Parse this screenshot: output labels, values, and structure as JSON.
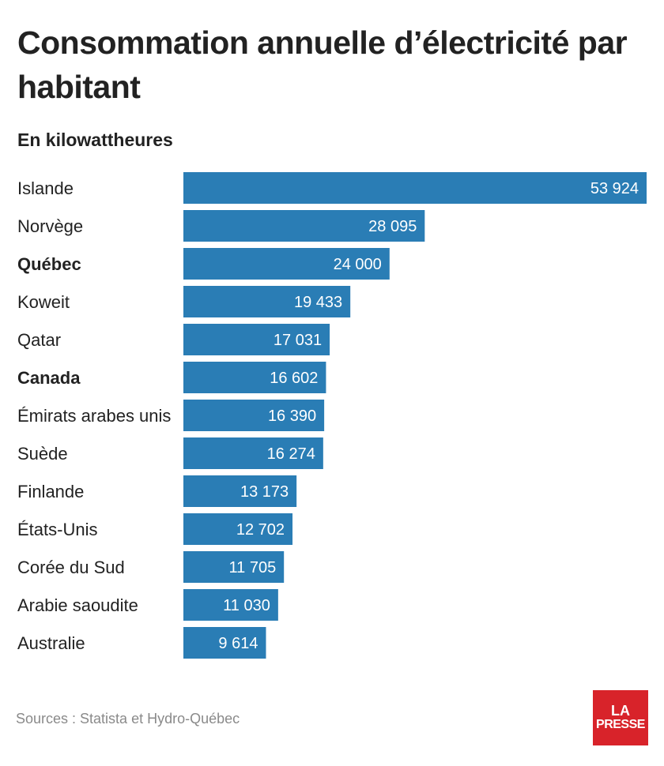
{
  "chart_data": {
    "type": "bar",
    "orientation": "horizontal",
    "title": "Consommation annuelle d’électricité par habitant",
    "subtitle": "En kilowattheures",
    "categories": [
      "Islande",
      "Norvège",
      "Québec",
      "Koweit",
      "Qatar",
      "Canada",
      "Émirats arabes unis",
      "Suède",
      "Finlande",
      "États-Unis",
      "Corée du Sud",
      "Arabie saoudite",
      "Australie"
    ],
    "values": [
      53924,
      28095,
      24000,
      19433,
      17031,
      16602,
      16390,
      16274,
      13173,
      12702,
      11705,
      11030,
      9614
    ],
    "value_labels": [
      "53 924",
      "28 095",
      "24 000",
      "19 433",
      "17 031",
      "16 602",
      "16 390",
      "16 274",
      "13 173",
      "12 702",
      "11 705",
      "11 030",
      "9 614"
    ],
    "highlighted": [
      "Québec",
      "Canada"
    ],
    "xlim": [
      0,
      53924
    ],
    "bar_color": "#2a7db5",
    "grid": false
  },
  "source": "Sources : Statista et Hydro-Québec",
  "logo": {
    "line1": "LA",
    "line2": "PRESSE",
    "color": "#d8232a"
  }
}
